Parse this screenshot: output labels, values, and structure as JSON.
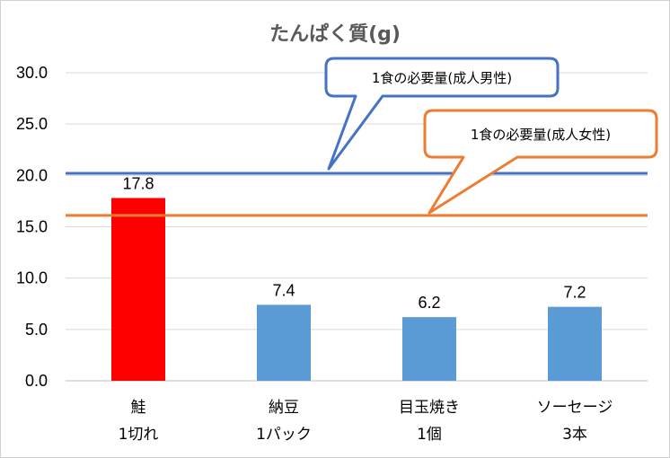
{
  "chart_data": {
    "type": "bar",
    "title": "たんぱく質(g)",
    "categories": [
      [
        "鮭",
        "1切れ"
      ],
      [
        "納豆",
        "1パック"
      ],
      [
        "目玉焼き",
        "1個"
      ],
      [
        "ソーセージ",
        "3本"
      ]
    ],
    "values": [
      17.8,
      7.4,
      6.2,
      7.2
    ],
    "data_labels": [
      "17.8",
      "7.4",
      "6.2",
      "7.2"
    ],
    "bar_colors": [
      "#ff0000",
      "#5b9bd5",
      "#5b9bd5",
      "#5b9bd5"
    ],
    "ylim": [
      0,
      30
    ],
    "yticks": [
      "0.0",
      "5.0",
      "10.0",
      "15.0",
      "20.0",
      "25.0",
      "30.0"
    ],
    "grid": true,
    "reference_lines": [
      {
        "label": "1食の必要量(成人男性)",
        "value": 20.2,
        "color": "#4472c4"
      },
      {
        "label": "1食の必要量(成人女性)",
        "value": 16.1,
        "color": "#ed7d31"
      }
    ]
  }
}
